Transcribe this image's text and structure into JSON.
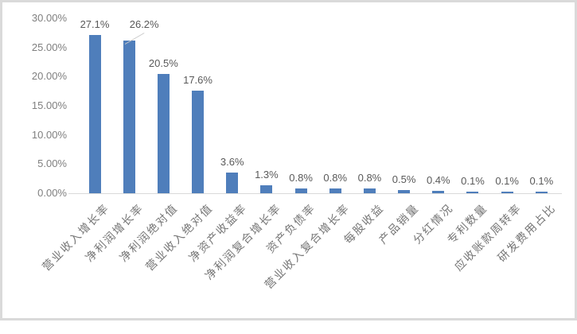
{
  "chart_data": {
    "type": "bar",
    "title": "",
    "xlabel": "",
    "ylabel": "",
    "categories": [
      "营业收入增长率",
      "净利润增长率",
      "净利润绝对值",
      "营业收入绝对值",
      "净资产收益率",
      "净利润复合增长率",
      "资产负债率",
      "营业收入复合增长率",
      "每股收益",
      "产品销量",
      "分红情况",
      "专利数量",
      "应收账款周转率",
      "研发费用占比"
    ],
    "values": [
      27.1,
      26.2,
      20.5,
      17.6,
      3.6,
      1.3,
      0.8,
      0.8,
      0.8,
      0.5,
      0.4,
      0.1,
      0.1,
      0.1
    ],
    "value_labels": [
      "27.1%",
      "26.2%",
      "20.5%",
      "17.6%",
      "3.6%",
      "1.3%",
      "0.8%",
      "0.8%",
      "0.8%",
      "0.5%",
      "0.4%",
      "0.1%",
      "0.1%",
      "0.1%"
    ],
    "y_ticks": [
      "0.00%",
      "5.00%",
      "10.00%",
      "15.00%",
      "20.00%",
      "25.00%",
      "30.00%"
    ],
    "ylim": [
      0,
      30
    ],
    "y_tick_step": 5,
    "grid": false,
    "legend": "none",
    "data_labels": true,
    "leader_line_index": 1,
    "colors": {
      "bar": "#4f7ebb",
      "axis_line": "#d9d9d9",
      "y_tick_label": "#7f7f7f",
      "data_label": "#595959",
      "category_label": "#767676",
      "leader_line": "#c9c9c9",
      "frame_border": "#dadada",
      "background": "#ffffff"
    }
  }
}
